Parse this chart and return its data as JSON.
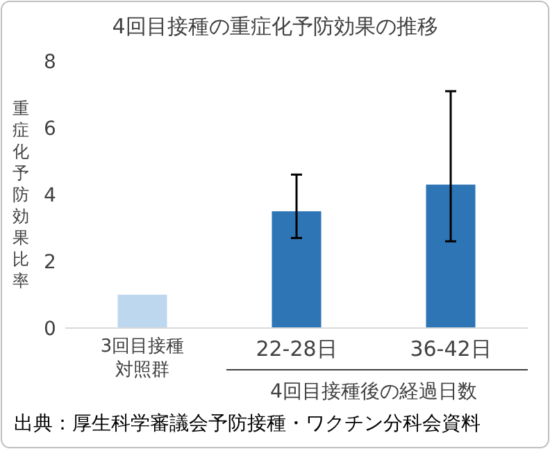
{
  "chart_data": {
    "type": "bar",
    "title": "4回目接種の重症化予防効果の推移",
    "ylabel": "重症化予防効果比率",
    "xlabel": "4回目接種後の経過日数",
    "categories": [
      "3回目接種対照群",
      "22-28日",
      "36-42日"
    ],
    "values": [
      1.0,
      3.5,
      4.3
    ],
    "colors": [
      "#bdd7ee",
      "#2e75b6",
      "#2e75b6"
    ],
    "errors": [
      null,
      [
        2.7,
        4.6
      ],
      [
        2.6,
        7.1
      ]
    ],
    "ylim": [
      0,
      8
    ],
    "yticks": [
      0,
      2,
      4,
      6,
      8
    ],
    "grid": false,
    "annotations": [
      "出典：厚生科学審議会予防接種・ワクチン分科会資料"
    ]
  }
}
